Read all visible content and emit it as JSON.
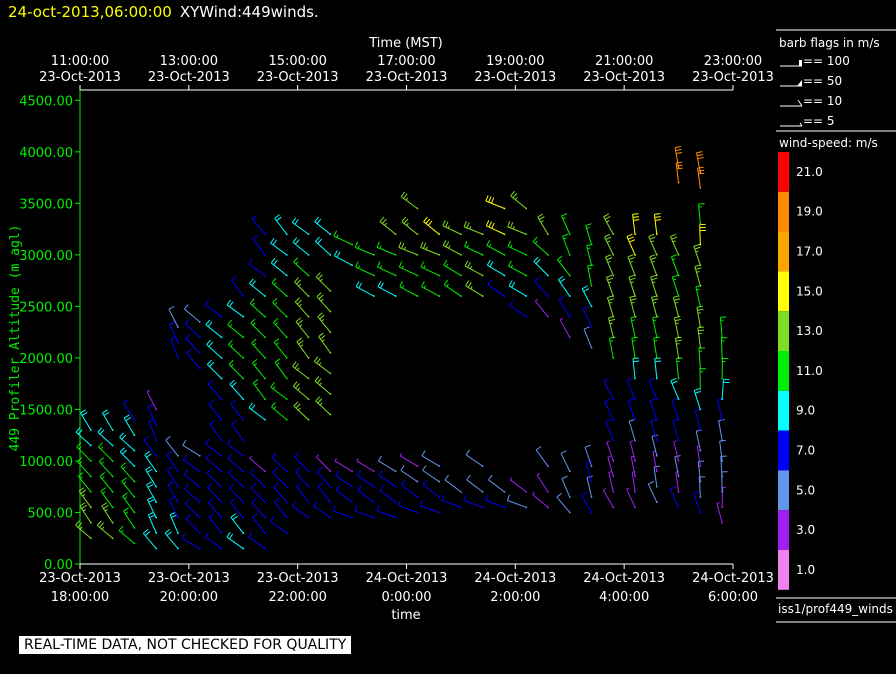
{
  "header": {
    "timestamp": "24-oct-2013,06:00:00",
    "plot_name": "XYWind:449winds."
  },
  "warning": "REAL-TIME DATA, NOT CHECKED FOR QUALITY",
  "source_label": "iss1/prof449_winds",
  "barb_legend": {
    "title": "barb flags in m/s",
    "items": [
      "== 100",
      "== 50",
      "== 10",
      "== 5"
    ]
  },
  "speed_legend": {
    "title": "wind-speed: m/s",
    "bins": [
      {
        "label": "21.0",
        "color": "#ff0000"
      },
      {
        "label": "19.0",
        "color": "#ff8c00"
      },
      {
        "label": "17.0",
        "color": "#ffa500"
      },
      {
        "label": "15.0",
        "color": "#ffff00"
      },
      {
        "label": "13.0",
        "color": "#7fdd22"
      },
      {
        "label": "11.0",
        "color": "#00ee00"
      },
      {
        "label": "9.0",
        "color": "#00ffff"
      },
      {
        "label": "7.0",
        "color": "#0000ff"
      },
      {
        "label": "5.0",
        "color": "#6495ed"
      },
      {
        "label": "3.0",
        "color": "#a020f0"
      },
      {
        "label": "1.0",
        "color": "#ee82ee"
      }
    ]
  },
  "chart_data": {
    "type": "scatter",
    "description_of_marks": "wind barbs at (time, altitude)",
    "top_axis": {
      "label": "Time (MST)",
      "ticks": [
        {
          "time": "11:00:00",
          "date": "23-Oct-2013"
        },
        {
          "time": "13:00:00",
          "date": "23-Oct-2013"
        },
        {
          "time": "15:00:00",
          "date": "23-Oct-2013"
        },
        {
          "time": "17:00:00",
          "date": "23-Oct-2013"
        },
        {
          "time": "19:00:00",
          "date": "23-Oct-2013"
        },
        {
          "time": "21:00:00",
          "date": "23-Oct-2013"
        },
        {
          "time": "23:00:00",
          "date": "23-Oct-2013"
        }
      ]
    },
    "x_axis": {
      "label": "time",
      "range_hours_utc": [
        18,
        30
      ],
      "ticks": [
        {
          "date": "23-Oct-2013",
          "time": "18:00:00"
        },
        {
          "date": "23-Oct-2013",
          "time": "20:00:00"
        },
        {
          "date": "23-Oct-2013",
          "time": "22:00:00"
        },
        {
          "date": "24-Oct-2013",
          "time": "0:00:00"
        },
        {
          "date": "24-Oct-2013",
          "time": "2:00:00"
        },
        {
          "date": "24-Oct-2013",
          "time": "4:00:00"
        },
        {
          "date": "24-Oct-2013",
          "time": "6:00:00"
        }
      ]
    },
    "y_axis": {
      "label": "449 Profiler Altitude (m agl)",
      "range": [
        0,
        4600
      ],
      "ticks": [
        "0.00",
        "500.00",
        "1000.00",
        "1500.00",
        "2000.00",
        "2500.00",
        "3000.00",
        "3500.00",
        "4000.00",
        "4500.00"
      ]
    },
    "barbs": [
      {
        "t": 18.2,
        "z": [
          250,
          400,
          550,
          700,
          850,
          1000,
          1150,
          1300
        ],
        "speed": [
          13,
          13,
          13,
          11,
          11,
          11,
          9,
          9
        ],
        "dir": 320
      },
      {
        "t": 18.6,
        "z": [
          250,
          400,
          550,
          700,
          850,
          1000,
          1150,
          1300
        ],
        "speed": [
          13,
          13,
          11,
          11,
          11,
          11,
          9,
          9
        ],
        "dir": 320
      },
      {
        "t": 19.0,
        "z": [
          200,
          350,
          500,
          650,
          800,
          950,
          1100,
          1250,
          1400
        ],
        "speed": [
          11,
          11,
          11,
          11,
          11,
          9,
          9,
          9,
          7
        ],
        "dir": 320
      },
      {
        "t": 19.4,
        "z": [
          150,
          300,
          450,
          600,
          750,
          900,
          1050,
          1200,
          1350,
          1500
        ],
        "speed": [
          9,
          9,
          9,
          9,
          9,
          9,
          7,
          7,
          7,
          3
        ],
        "dir": 330
      },
      {
        "t": 19.8,
        "z": [
          150,
          300,
          450,
          600,
          750,
          900,
          1050,
          2000,
          2150,
          2300
        ],
        "speed": [
          9,
          9,
          7,
          7,
          7,
          7,
          5,
          7,
          7,
          5
        ],
        "dir": 330
      },
      {
        "t": 20.2,
        "z": [
          150,
          300,
          450,
          600,
          750,
          900,
          1050,
          1900,
          2050,
          2200,
          2350
        ],
        "speed": [
          7,
          7,
          7,
          7,
          7,
          7,
          5,
          7,
          7,
          7,
          5
        ],
        "dir": 310
      },
      {
        "t": 20.6,
        "z": [
          150,
          300,
          450,
          600,
          750,
          900,
          1050,
          1200,
          1400,
          1600,
          1800,
          2000,
          2200,
          2400
        ],
        "speed": [
          7,
          7,
          7,
          7,
          7,
          7,
          7,
          7,
          7,
          7,
          9,
          9,
          9,
          7
        ],
        "dir": 315
      },
      {
        "t": 21.0,
        "z": [
          150,
          300,
          450,
          600,
          750,
          900,
          1050,
          1200,
          1400,
          1600,
          1800,
          2000,
          2200,
          2400,
          2600
        ],
        "speed": [
          9,
          9,
          7,
          7,
          7,
          7,
          7,
          7,
          7,
          9,
          11,
          11,
          11,
          9,
          7
        ],
        "dir": 315
      },
      {
        "t": 21.4,
        "z": [
          150,
          300,
          450,
          600,
          750,
          900,
          1400,
          1600,
          1800,
          2000,
          2200,
          2400,
          2600,
          2800,
          3000,
          3200
        ],
        "speed": [
          7,
          7,
          7,
          7,
          7,
          3,
          9,
          11,
          11,
          11,
          11,
          11,
          9,
          7,
          7,
          7
        ],
        "dir": 315
      },
      {
        "t": 21.8,
        "z": [
          300,
          450,
          600,
          750,
          900,
          1400,
          1600,
          1800,
          2000,
          2200,
          2400,
          2600,
          2800,
          3000,
          3200
        ],
        "speed": [
          7,
          7,
          7,
          7,
          7,
          11,
          11,
          11,
          11,
          11,
          11,
          11,
          9,
          9,
          9
        ],
        "dir": 315
      },
      {
        "t": 22.2,
        "z": [
          450,
          600,
          750,
          900,
          1400,
          1600,
          1800,
          2000,
          2200,
          2400,
          2600,
          2800,
          3000,
          3200
        ],
        "speed": [
          7,
          7,
          7,
          7,
          13,
          13,
          13,
          13,
          13,
          13,
          13,
          11,
          9,
          9
        ],
        "dir": 315
      },
      {
        "t": 22.6,
        "z": [
          450,
          600,
          750,
          900,
          1450,
          1650,
          1850,
          2050,
          2250,
          2450,
          2650,
          3000,
          3200
        ],
        "speed": [
          7,
          7,
          7,
          3,
          13,
          13,
          13,
          13,
          13,
          13,
          13,
          9,
          9
        ],
        "dir": 315
      },
      {
        "t": 23.0,
        "z": [
          450,
          600,
          750,
          900,
          2900,
          3100
        ],
        "speed": [
          7,
          7,
          7,
          3,
          9,
          11
        ],
        "dir": 300
      },
      {
        "t": 23.4,
        "z": [
          450,
          600,
          750,
          900,
          2600,
          2800,
          3000
        ],
        "speed": [
          7,
          7,
          7,
          3,
          9,
          11,
          11
        ],
        "dir": 300
      },
      {
        "t": 23.8,
        "z": [
          450,
          600,
          750,
          900,
          2600,
          2800,
          3000,
          3200
        ],
        "speed": [
          7,
          7,
          7,
          5,
          9,
          11,
          11,
          13
        ],
        "dir": 300
      },
      {
        "t": 24.2,
        "z": [
          500,
          650,
          800,
          950,
          2600,
          2800,
          3000,
          3200,
          3450
        ],
        "speed": [
          7,
          7,
          5,
          3,
          11,
          11,
          13,
          13,
          13
        ],
        "dir": 300
      },
      {
        "t": 24.6,
        "z": [
          500,
          650,
          800,
          950,
          2600,
          2800,
          3000,
          3200
        ],
        "speed": [
          7,
          7,
          5,
          5,
          11,
          11,
          13,
          15
        ],
        "dir": 300
      },
      {
        "t": 25.0,
        "z": [
          550,
          700,
          2600,
          2800,
          3000,
          3200
        ],
        "speed": [
          7,
          5,
          11,
          11,
          13,
          13
        ],
        "dir": 300
      },
      {
        "t": 25.4,
        "z": [
          550,
          700,
          950,
          2600,
          2800,
          3000,
          3200
        ],
        "speed": [
          7,
          5,
          5,
          13,
          13,
          11,
          13
        ],
        "dir": 300
      },
      {
        "t": 25.8,
        "z": [
          550,
          700,
          2600,
          2800,
          3000,
          3200,
          3450
        ],
        "speed": [
          7,
          5,
          7,
          9,
          11,
          15,
          15
        ],
        "dir": 300
      },
      {
        "t": 26.2,
        "z": [
          550,
          700,
          2400,
          2600,
          2800,
          3000,
          3200,
          3450
        ],
        "speed": [
          5,
          3,
          7,
          9,
          11,
          11,
          13,
          13
        ],
        "dir": 300
      },
      {
        "t": 26.6,
        "z": [
          550,
          700,
          950,
          2400,
          2600,
          2800,
          3000,
          3200
        ],
        "speed": [
          3,
          3,
          5,
          3,
          7,
          9,
          11,
          13
        ],
        "dir": 320
      },
      {
        "t": 27.0,
        "z": [
          500,
          650,
          900,
          2200,
          2400,
          2600,
          2800,
          3000,
          3200
        ],
        "speed": [
          5,
          5,
          5,
          3,
          7,
          9,
          11,
          11,
          11
        ],
        "dir": 330
      },
      {
        "t": 27.4,
        "z": [
          500,
          650,
          800,
          950,
          2100,
          2300,
          2500,
          2700,
          2900,
          3100
        ],
        "speed": [
          7,
          5,
          7,
          5,
          5,
          7,
          9,
          11,
          11,
          11
        ],
        "dir": 340
      },
      {
        "t": 27.8,
        "z": [
          550,
          700,
          850,
          1000,
          1200,
          1400,
          1600,
          2000,
          2200,
          2400,
          2600,
          2800,
          3000,
          3200
        ],
        "speed": [
          3,
          3,
          3,
          3,
          7,
          7,
          7,
          11,
          13,
          13,
          13,
          13,
          13,
          13
        ],
        "dir": 340
      },
      {
        "t": 28.2,
        "z": [
          550,
          700,
          850,
          1000,
          1200,
          1400,
          1600,
          1800,
          2000,
          2200,
          2400,
          2600,
          2800,
          3000,
          3200
        ],
        "speed": [
          3,
          3,
          3,
          3,
          5,
          7,
          7,
          9,
          11,
          11,
          13,
          13,
          13,
          15,
          15
        ],
        "dir": 345
      },
      {
        "t": 28.6,
        "z": [
          600,
          750,
          900,
          1050,
          1200,
          1400,
          1600,
          1800,
          2000,
          2200,
          2400,
          2600,
          2800,
          3000,
          3200
        ],
        "speed": [
          5,
          5,
          3,
          5,
          7,
          7,
          7,
          9,
          11,
          11,
          13,
          13,
          13,
          13,
          15
        ],
        "dir": 345
      },
      {
        "t": 29.0,
        "z": [
          550,
          700,
          850,
          1000,
          1200,
          1400,
          1600,
          1800,
          2000,
          2200,
          2400,
          2600,
          2800,
          3000,
          3700,
          3850
        ],
        "speed": [
          7,
          3,
          5,
          3,
          7,
          7,
          9,
          11,
          13,
          13,
          13,
          11,
          11,
          13,
          19,
          19
        ],
        "dir": 345
      },
      {
        "t": 29.4,
        "z": [
          500,
          650,
          800,
          950,
          1100,
          1300,
          1500,
          1700,
          1900,
          2100,
          2300,
          2500,
          2700,
          2900,
          3100,
          3300,
          3650,
          3800
        ],
        "speed": [
          7,
          5,
          5,
          3,
          5,
          7,
          9,
          11,
          11,
          13,
          13,
          11,
          13,
          13,
          15,
          11,
          19,
          19
        ],
        "dir": 350
      },
      {
        "t": 29.8,
        "z": [
          400,
          550,
          700,
          850,
          1000,
          1200,
          1400,
          1600,
          1800,
          2000,
          2200
        ],
        "speed": [
          3,
          3,
          5,
          5,
          5,
          5,
          7,
          9,
          11,
          11,
          11
        ],
        "dir": 355
      }
    ]
  }
}
